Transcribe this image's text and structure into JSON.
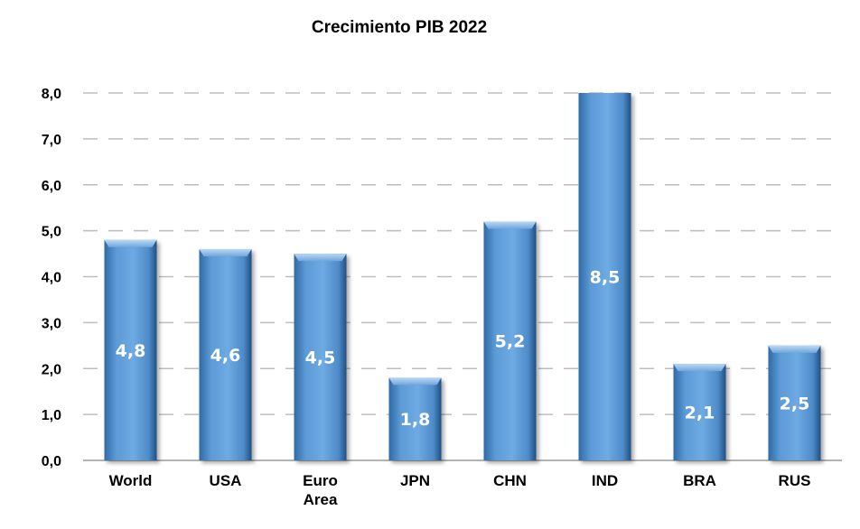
{
  "chart_data": {
    "type": "bar",
    "title": "Crecimiento PIB 2022",
    "xlabel": "",
    "ylabel": "",
    "ylim": [
      0,
      8
    ],
    "y_ticks": [
      "0,0",
      "1,0",
      "2,0",
      "3,0",
      "4,0",
      "5,0",
      "6,0",
      "7,0",
      "8,0"
    ],
    "categories": [
      [
        "World"
      ],
      [
        "USA"
      ],
      [
        "Euro",
        "Area"
      ],
      [
        "JPN"
      ],
      [
        "CHN"
      ],
      [
        "IND"
      ],
      [
        "BRA"
      ],
      [
        "RUS"
      ]
    ],
    "values": [
      4.8,
      4.6,
      4.5,
      1.8,
      5.2,
      8.5,
      2.1,
      2.5
    ],
    "data_labels": [
      "4,8",
      "4,6",
      "4,5",
      "1,8",
      "5,2",
      "8,5",
      "2,1",
      "2,5"
    ],
    "bar_color": "#5b9bd5",
    "grid": "horizontal dashed",
    "legend": "none"
  }
}
